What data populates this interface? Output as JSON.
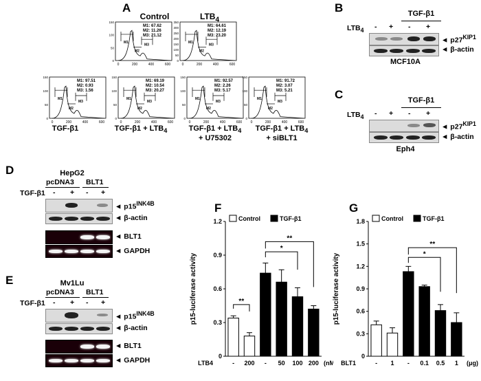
{
  "panel_A": {
    "letter": "A",
    "top_labels": [
      "Control",
      "LTB4"
    ],
    "plot_axis": {
      "y_ticks": [
        "0",
        "50",
        "100",
        "150"
      ],
      "y_ticks_ltb4": [
        "0",
        "50",
        "100",
        "150",
        "200",
        "250",
        "300",
        "350"
      ],
      "x_ticks": [
        "0",
        "200",
        "400",
        "600"
      ]
    },
    "gates": [
      "M1",
      "M2",
      "M3"
    ],
    "hist": [
      {
        "id": "control",
        "title": "Control",
        "stats": [
          "M1: 67.62",
          "M2: 11.26",
          "M3: 21.12"
        ]
      },
      {
        "id": "ltb4",
        "title": "LTB4",
        "stats": [
          "M1: 64.61",
          "M2: 12.19",
          "M3: 23.20"
        ]
      },
      {
        "id": "tgf",
        "caption": "TGF-β1",
        "stats": [
          "M1: 97.51",
          "M2:  0.93",
          "M3:  1.56"
        ]
      },
      {
        "id": "tgf_ltb4",
        "caption": "TGF-β1 + LTB4",
        "stats": [
          "M1: 69.19",
          "M2: 10.54",
          "M3: 20.27"
        ]
      },
      {
        "id": "tgf_ltb4_u",
        "caption": "TGF-β1 + LTB4",
        "caption2": "+ U75302",
        "stats": [
          "M1: 92.57",
          "M2:  2.26",
          "M3:  5.17"
        ]
      },
      {
        "id": "tgf_ltb4_si",
        "caption": "TGF-β1 + LTB4",
        "caption2": "+ siBLT1",
        "stats": [
          "M1: 91.72",
          "M2:  3.07",
          "M3:  5.21"
        ]
      }
    ]
  },
  "panel_B": {
    "letter": "B",
    "group": "TGF-β1",
    "row_label": "LTB4",
    "lanes": [
      "-",
      "+",
      "-",
      "+"
    ],
    "bands": [
      "p27KIP1",
      "β-actin"
    ],
    "cell": "MCF10A"
  },
  "panel_C": {
    "letter": "C",
    "group": "TGF-β1",
    "row_label": "LTB4",
    "lanes": [
      "-",
      "+",
      "-",
      "+"
    ],
    "bands": [
      "p27KIP1",
      "β-actin"
    ],
    "cell": "Eph4"
  },
  "panel_D": {
    "letter": "D",
    "cell": "HepG2",
    "groups": [
      "pcDNA3",
      "BLT1"
    ],
    "row_label": "TGF-β1",
    "lanes": [
      "-",
      "+",
      "-",
      "+"
    ],
    "bands": [
      "p15INK4B",
      "β-actin",
      "BLT1",
      "GAPDH"
    ]
  },
  "panel_E": {
    "letter": "E",
    "cell": "Mv1Lu",
    "groups": [
      "pcDNA3",
      "BLT1"
    ],
    "row_label": "TGF-β1",
    "lanes": [
      "-",
      "+",
      "-",
      "+"
    ],
    "bands": [
      "p15INK4B",
      "β-actin",
      "BLT1",
      "GAPDH"
    ]
  },
  "panel_F": {
    "letter": "F",
    "legend": [
      "Control",
      "TGF-β1"
    ],
    "ylabel": "p15-luciferase activity",
    "xrow_label": "LTB4",
    "x_unit": "(nM)",
    "sig": [
      "**",
      "*",
      "**"
    ]
  },
  "panel_G": {
    "letter": "G",
    "legend": [
      "Control",
      "TGF-β1"
    ],
    "ylabel": "p15-luciferase activity",
    "xrow_label": "BLT1",
    "x_unit": "(μg)",
    "sig": [
      "*",
      "**"
    ]
  },
  "chart_data": [
    {
      "type": "bar",
      "id": "F",
      "ylabel": "p15-luciferase activity",
      "ylim": [
        0,
        1.2
      ],
      "yticks": [
        "0",
        "0.3",
        "0.6",
        "0.9",
        "1.2"
      ],
      "categories": [
        "-",
        "200",
        "-",
        "50",
        "100",
        "200"
      ],
      "series": [
        {
          "name": "Control",
          "color": "#ffffff",
          "values": [
            0.34,
            0.18,
            null,
            null,
            null,
            null
          ],
          "errors": [
            0.02,
            0.03,
            null,
            null,
            null,
            null
          ]
        },
        {
          "name": "TGF-β1",
          "color": "#000000",
          "values": [
            null,
            null,
            0.74,
            0.66,
            0.53,
            0.42
          ],
          "errors": [
            null,
            null,
            0.09,
            0.11,
            0.08,
            0.03
          ]
        }
      ]
    },
    {
      "type": "bar",
      "id": "G",
      "ylabel": "p15-luciferase activity",
      "ylim": [
        0,
        1.8
      ],
      "yticks": [
        "0",
        "0.3",
        "0.6",
        "0.9",
        "1.2",
        "1.5",
        "1.8"
      ],
      "categories": [
        "-",
        "1",
        "-",
        "0.1",
        "0.5",
        "1"
      ],
      "series": [
        {
          "name": "Control",
          "color": "#ffffff",
          "values": [
            0.42,
            0.31,
            null,
            null,
            null,
            null
          ],
          "errors": [
            0.05,
            0.07,
            null,
            null,
            null,
            null
          ]
        },
        {
          "name": "TGF-β1",
          "color": "#000000",
          "values": [
            null,
            null,
            1.13,
            0.93,
            0.61,
            0.45
          ],
          "errors": [
            null,
            null,
            0.07,
            0.02,
            0.08,
            0.13
          ]
        }
      ]
    }
  ]
}
